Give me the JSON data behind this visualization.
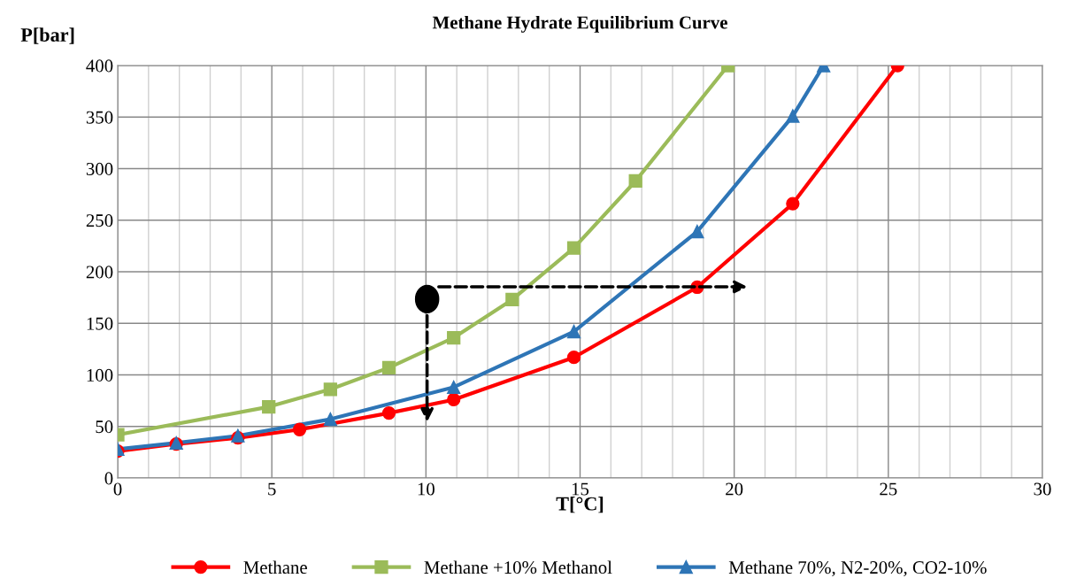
{
  "chart_data": {
    "type": "line",
    "title": "Methane Hydrate Equilibrium Curve",
    "xlabel": "T[°C]",
    "ylabel": "P[bar]",
    "xlim": [
      0,
      30
    ],
    "xticks": [
      0,
      5,
      10,
      15,
      20,
      25,
      30
    ],
    "ylim": [
      0,
      400
    ],
    "yticks": [
      0,
      50,
      100,
      150,
      200,
      250,
      300,
      350,
      400
    ],
    "grid": true,
    "legend": "bottom",
    "line_style": "solid",
    "series": [
      {
        "name": "Methane",
        "color": "#ff0000",
        "marker": "circle",
        "x": [
          0,
          1.9,
          3.9,
          5.9,
          8.8,
          10.9,
          14.8,
          18.8,
          21.9,
          25.3
        ],
        "values": [
          26,
          33,
          39,
          47,
          63,
          76,
          117,
          185,
          266,
          400
        ]
      },
      {
        "name": "Methane +10% Methanol",
        "color": "#9bbb59",
        "marker": "square",
        "x": [
          0,
          4.9,
          6.9,
          8.8,
          10.9,
          12.8,
          14.8,
          16.8,
          19.8
        ],
        "values": [
          42,
          69,
          86,
          107,
          136,
          173,
          223,
          288,
          400
        ]
      },
      {
        "name": "Methane 70%, N2-20%, CO2-10%",
        "color": "#2e75b6",
        "marker": "triangle",
        "x": [
          0,
          1.9,
          3.9,
          6.9,
          10.9,
          14.8,
          18.8,
          21.9,
          22.9
        ],
        "values": [
          28,
          34,
          41,
          57,
          88,
          142,
          239,
          351,
          400
        ]
      }
    ]
  }
}
